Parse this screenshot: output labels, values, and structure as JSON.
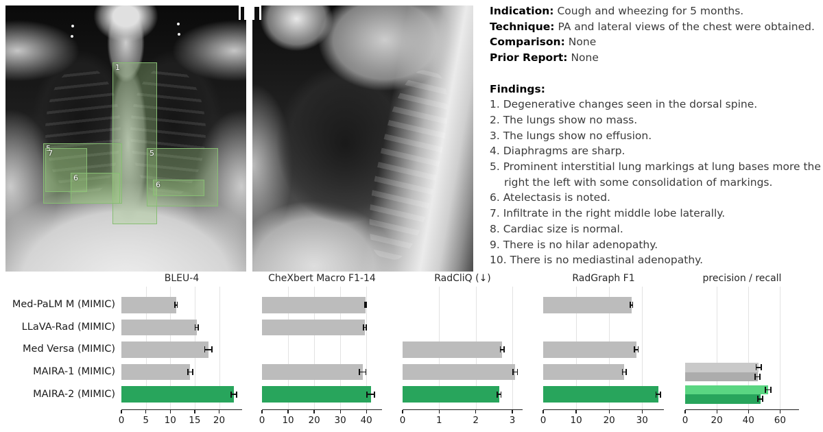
{
  "report": {
    "fields": [
      {
        "label": "Indication:",
        "text": "Cough and wheezing for 5 months."
      },
      {
        "label": "Technique:",
        "text": "PA and lateral views of the chest were obtained."
      },
      {
        "label": "Comparison:",
        "text": "None"
      },
      {
        "label": "Prior Report:",
        "text": "None"
      }
    ],
    "findings_label": "Findings:",
    "findings": [
      "1. Degenerative changes seen in the dorsal spine.",
      "2. The lungs show no mass.",
      "3. The lungs show no effusion.",
      "4. Diaphragms are sharp.",
      "5. Prominent interstitial lung markings at lung bases more the right the left with some consolidation of markings.",
      "6. Atelectasis is noted.",
      "7. Infiltrate in the right middle lobe laterally.",
      "8. Cardiac size is normal.",
      "9. There is no hilar adenopathy.",
      "10. There is no mediastinal adenopathy."
    ]
  },
  "xray": {
    "frontal_boxes": [
      {
        "label": "1"
      },
      {
        "label": "5"
      },
      {
        "label": "7"
      },
      {
        "label": "6"
      },
      {
        "label": "5"
      },
      {
        "label": "6"
      }
    ]
  },
  "colors": {
    "bar_default": "#bcbcbc",
    "bar_highlight": "#28a55c",
    "precision_default": "#c9c9c9",
    "recall_default": "#acacac",
    "precision_highlight": "#5ad682",
    "recall_highlight": "#28a55c",
    "annotation_box_stroke": "#87be73",
    "annotation_box_fill": "rgba(160,205,130,0.32)",
    "error_bar": "#111111"
  },
  "chart_data": {
    "type": "bar",
    "orientation": "horizontal",
    "categories": [
      "Med-PaLM M (MIMIC)",
      "LLaVA-Rad (MIMIC)",
      "Med Versa (MIMIC)",
      "MAIRA-1 (MIMIC)",
      "MAIRA-2 (MIMIC)"
    ],
    "highlight_category": "MAIRA-2 (MIMIC)",
    "grid": true,
    "panels": [
      {
        "title": "BLEU-4",
        "xlim": [
          0,
          24.7
        ],
        "ticks": [
          0,
          5,
          10,
          15,
          20
        ],
        "values": [
          11.2,
          15.4,
          17.8,
          14.1,
          23.0
        ],
        "errors": [
          0.25,
          0.3,
          0.75,
          0.45,
          0.55
        ]
      },
      {
        "title": "CheXbert Macro F1-14",
        "xlim": [
          0,
          46
        ],
        "ticks": [
          0,
          10,
          20,
          30,
          40
        ],
        "values": [
          39.7,
          39.4,
          null,
          38.6,
          41.7
        ],
        "errors": [
          0.35,
          0.45,
          null,
          1.2,
          1.5
        ]
      },
      {
        "title": "RadCliQ (↓)",
        "xlim": [
          0,
          3.28
        ],
        "ticks": [
          0,
          1,
          2,
          3
        ],
        "values": [
          null,
          null,
          2.72,
          3.08,
          2.64
        ],
        "errors": [
          null,
          null,
          0.05,
          0.06,
          0.05
        ]
      },
      {
        "title": "RadGraph F1",
        "xlim": [
          0,
          36.6
        ],
        "ticks": [
          0,
          10,
          20,
          30
        ],
        "values": [
          26.8,
          null,
          28.2,
          24.6,
          34.9
        ],
        "errors": [
          0.35,
          null,
          0.6,
          0.6,
          0.7
        ]
      },
      {
        "title": "precision / recall",
        "xlim": [
          0,
          72
        ],
        "ticks": [
          0,
          20,
          40,
          60
        ],
        "series": [
          {
            "name": "precision",
            "values": [
              null,
              null,
              null,
              46.5,
              52.5
            ],
            "errors": [
              null,
              null,
              null,
              1.6,
              1.6
            ]
          },
          {
            "name": "recall",
            "values": [
              null,
              null,
              null,
              45.8,
              47.5
            ],
            "errors": [
              null,
              null,
              null,
              1.6,
              1.6
            ]
          }
        ]
      }
    ]
  }
}
